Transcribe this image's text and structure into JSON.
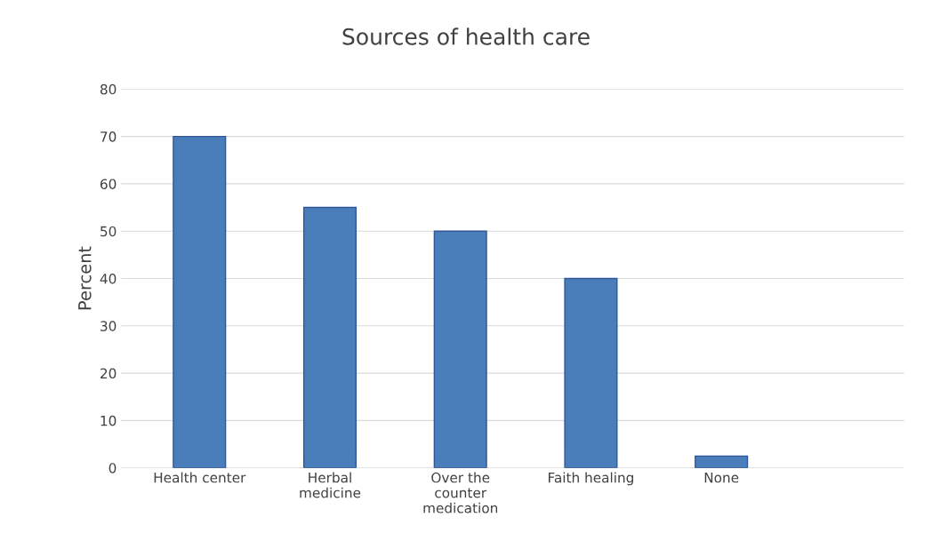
{
  "chart_data": {
    "type": "bar",
    "title": "Sources of health care",
    "ylabel": "Percent",
    "categories": [
      "Health center",
      "Herbal\nmedicine",
      "Over the\ncounter\nmedication",
      "Faith healing",
      "None"
    ],
    "values": [
      70,
      55,
      50,
      40,
      2.5
    ],
    "color": "#4a7ebb",
    "ylim": [
      0,
      80
    ],
    "yticks": [
      0,
      10,
      20,
      30,
      40,
      50,
      60,
      70,
      80
    ],
    "grid": "y"
  }
}
